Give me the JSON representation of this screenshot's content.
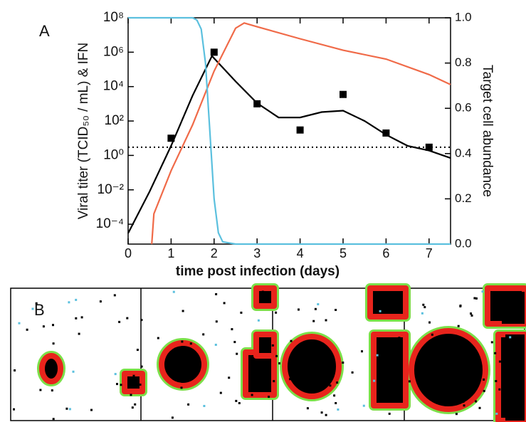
{
  "chart_data": {
    "type": "line",
    "panel_labels": [
      "A",
      "B"
    ],
    "xlabel": "time post infection (days)",
    "ylabel": "Viral titer (TCID₅₀ / mL) & IFN",
    "y2label": "Target cell abundance",
    "xlim": [
      0,
      7.5
    ],
    "xticks": [
      0,
      1,
      2,
      3,
      4,
      5,
      6,
      7
    ],
    "ylim": [
      7e-06,
      100000000
    ],
    "y_scale": "log",
    "yticks": [
      {
        "value": 100000000,
        "label": "10⁸"
      },
      {
        "value": 1000000,
        "label": "10⁶"
      },
      {
        "value": 10000,
        "label": "10⁴"
      },
      {
        "value": 100,
        "label": "10²"
      },
      {
        "value": 1,
        "label": "10⁰"
      },
      {
        "value": 0.01,
        "label": "10⁻²"
      },
      {
        "value": 0.0001,
        "label": "10⁻⁴"
      }
    ],
    "y2lim": [
      0,
      1
    ],
    "y2ticks": [
      {
        "value": 0,
        "label": "0.0"
      },
      {
        "value": 0.2,
        "label": "0.2"
      },
      {
        "value": 0.4,
        "label": "0.4"
      },
      {
        "value": 0.6,
        "label": "0.6"
      },
      {
        "value": 0.8,
        "label": "0.8"
      },
      {
        "value": 1,
        "label": "1.0"
      }
    ],
    "reference_line": {
      "value": 3,
      "color": "#000000",
      "style": "dotted"
    },
    "series": [
      {
        "color": "#000000",
        "style": "line",
        "x": [
          0,
          0.5,
          1,
          1.5,
          1.95,
          2.5,
          3,
          3.5,
          4,
          4.5,
          5,
          5.5,
          6,
          6.5,
          7,
          7.5
        ],
        "values": [
          3e-05,
          0.008,
          3.6,
          3000,
          600000,
          20000,
          1100,
          160,
          160,
          330,
          400,
          100,
          16,
          3.6,
          1.9,
          0.7
        ]
      },
      {
        "color": "#f06a48",
        "style": "line",
        "x": [
          0.55,
          0.6,
          1,
          1.5,
          2,
          2.5,
          2.7,
          3,
          4,
          5,
          6,
          7,
          7.5
        ],
        "values": [
          7e-06,
          0.0004,
          0.13,
          60,
          80000,
          25000000,
          50000000,
          30000000,
          6000000,
          1300000,
          400000,
          50000,
          13000
        ]
      },
      {
        "color": "#5bc0de",
        "style": "line",
        "axis": "y2",
        "x": [
          0,
          1.5,
          1.6,
          1.7,
          1.8,
          1.9,
          2,
          2.1,
          2.2,
          2.5,
          7.5
        ],
        "values": [
          1,
          1,
          0.99,
          0.95,
          0.8,
          0.5,
          0.2,
          0.05,
          0.01,
          0,
          0
        ]
      },
      {
        "color": "#000000",
        "style": "square",
        "x": [
          1,
          2,
          3,
          4,
          5,
          6,
          7
        ],
        "values": [
          10,
          1000000,
          1000,
          30,
          3500,
          20,
          3
        ]
      }
    ]
  }
}
